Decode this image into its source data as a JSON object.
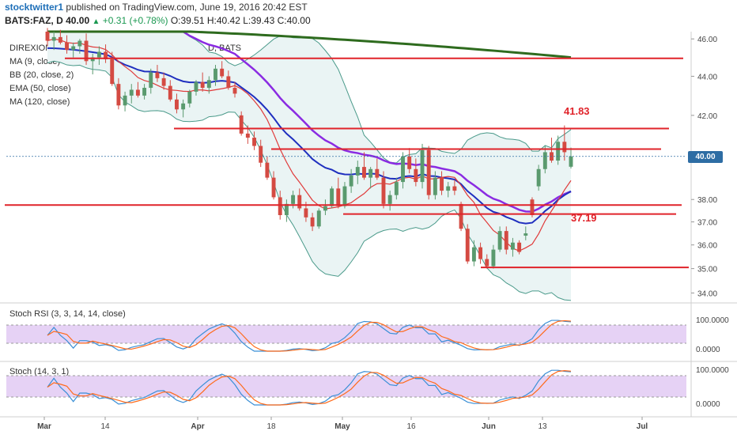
{
  "header": {
    "publisher": "stocktwitter1",
    "published_text": "published on TradingView.com, June 19, 2016 20:42 EST",
    "symbol": "BATS:FAZ, D",
    "last": "40.00",
    "change": "+0.31 (+0.78%)",
    "ohlc": "O:39.51 H:40.42 L:39.43 C:40.00"
  },
  "legend": {
    "title": "DIREXION DAILY FINANCIAL BEAR 3X SHARES, D, BATS",
    "ma9": "MA (9, close)",
    "bb": "BB (20, close, 2)",
    "ema50": "EMA (50, close)",
    "ma120": "MA (120, close)"
  },
  "panes": {
    "stoch_rsi": "Stoch RSI (3, 3, 14, 14, close)",
    "stoch": "Stoch (14, 3, 1)"
  },
  "colors": {
    "up": "#5a9a6e",
    "down": "#d44a42",
    "bb": "#4a9a8a",
    "bbfill": "#eaf4f4",
    "ma9": "#e03a3a",
    "ema50": "#1f2fbf",
    "ma120": "#8a2be2",
    "ma_long": "#2e6b1e",
    "level": "#e0232a",
    "k": "#3a8fd6",
    "d": "#ff6a1a",
    "band": "#e6d2f5",
    "tag": "#2e6da4"
  },
  "chart_data": {
    "type": "candlestick",
    "y_axis": {
      "min": 33.6,
      "max": 46.4,
      "ticks": [
        "46.00",
        "44.00",
        "42.00",
        "40.00",
        "38.00",
        "37.00",
        "36.00",
        "35.00",
        "34.00"
      ],
      "scale": "log"
    },
    "x_axis_labels": [
      "Mar",
      "14",
      "Apr",
      "18",
      "May",
      "16",
      "Jun",
      "13",
      "Jul"
    ],
    "last_price": "40.00",
    "annotations": [
      {
        "text": "41.83",
        "y": 41.83
      },
      {
        "text": "37.19",
        "y": 37.19
      }
    ],
    "horizontal_levels": [
      44.95,
      41.35,
      40.35,
      37.75,
      37.35,
      35.05
    ],
    "candles": [
      [
        46.4,
        46.6,
        45.6,
        45.9
      ],
      [
        45.9,
        46.4,
        45.4,
        46.1
      ],
      [
        46.1,
        46.5,
        45.7,
        45.8
      ],
      [
        45.8,
        46.2,
        45.2,
        45.4
      ],
      [
        45.4,
        45.8,
        45.0,
        45.6
      ],
      [
        45.6,
        46.0,
        45.2,
        45.9
      ],
      [
        45.9,
        46.3,
        44.6,
        44.8
      ],
      [
        44.8,
        45.2,
        44.1,
        45.0
      ],
      [
        45.0,
        45.6,
        44.6,
        45.3
      ],
      [
        45.3,
        45.7,
        44.7,
        44.9
      ],
      [
        44.9,
        45.3,
        43.5,
        43.6
      ],
      [
        43.6,
        43.9,
        42.3,
        42.5
      ],
      [
        42.5,
        43.2,
        42.2,
        43.0
      ],
      [
        43.0,
        43.6,
        42.6,
        43.3
      ],
      [
        43.3,
        43.7,
        42.9,
        43.0
      ],
      [
        43.0,
        43.6,
        42.8,
        43.4
      ],
      [
        43.4,
        44.4,
        43.1,
        44.2
      ],
      [
        44.2,
        44.6,
        43.7,
        43.9
      ],
      [
        43.9,
        44.2,
        43.3,
        43.5
      ],
      [
        43.5,
        43.8,
        42.7,
        42.8
      ],
      [
        42.8,
        43.1,
        42.1,
        42.3
      ],
      [
        42.3,
        42.8,
        41.9,
        42.6
      ],
      [
        42.6,
        43.3,
        42.4,
        43.2
      ],
      [
        43.2,
        43.8,
        43.0,
        43.7
      ],
      [
        43.7,
        44.2,
        43.2,
        43.4
      ],
      [
        43.4,
        44.0,
        43.1,
        43.8
      ],
      [
        43.8,
        44.6,
        43.5,
        44.4
      ],
      [
        44.4,
        44.8,
        43.9,
        44.0
      ],
      [
        44.0,
        44.3,
        43.3,
        43.4
      ],
      [
        43.4,
        43.7,
        42.9,
        43.1
      ],
      [
        42.0,
        42.2,
        41.0,
        41.1
      ],
      [
        41.1,
        41.5,
        40.6,
        40.9
      ],
      [
        40.9,
        41.2,
        40.3,
        40.5
      ],
      [
        40.5,
        40.8,
        39.5,
        39.7
      ],
      [
        39.7,
        40.0,
        38.9,
        39.0
      ],
      [
        39.0,
        39.3,
        38.0,
        38.1
      ],
      [
        38.1,
        38.4,
        37.1,
        37.3
      ],
      [
        37.3,
        38.0,
        37.0,
        37.8
      ],
      [
        37.8,
        38.4,
        37.6,
        38.2
      ],
      [
        38.2,
        38.5,
        37.5,
        37.6
      ],
      [
        37.6,
        37.9,
        37.0,
        37.2
      ],
      [
        37.2,
        37.4,
        36.6,
        36.8
      ],
      [
        36.8,
        37.6,
        36.7,
        37.5
      ],
      [
        37.5,
        38.0,
        37.3,
        37.7
      ],
      [
        37.7,
        38.6,
        37.6,
        38.5
      ],
      [
        38.5,
        39.0,
        37.6,
        37.7
      ],
      [
        37.7,
        38.8,
        37.6,
        38.6
      ],
      [
        38.6,
        39.4,
        38.3,
        39.1
      ],
      [
        39.1,
        39.8,
        38.7,
        39.5
      ],
      [
        39.5,
        40.2,
        38.9,
        39.0
      ],
      [
        39.0,
        39.5,
        38.5,
        39.4
      ],
      [
        39.4,
        39.9,
        38.9,
        39.0
      ],
      [
        39.0,
        39.3,
        37.6,
        37.8
      ],
      [
        37.8,
        38.4,
        37.5,
        38.2
      ],
      [
        38.2,
        39.0,
        38.0,
        38.8
      ],
      [
        38.8,
        40.2,
        38.5,
        40.0
      ],
      [
        40.0,
        40.4,
        39.2,
        39.4
      ],
      [
        39.4,
        39.9,
        38.6,
        38.8
      ],
      [
        38.8,
        40.6,
        38.5,
        40.3
      ],
      [
        40.3,
        40.5,
        38.0,
        38.2
      ],
      [
        38.2,
        39.3,
        38.0,
        39.0
      ],
      [
        39.0,
        39.3,
        38.2,
        38.4
      ],
      [
        38.4,
        38.8,
        38.1,
        38.6
      ],
      [
        38.6,
        38.9,
        38.2,
        38.4
      ],
      [
        37.8,
        37.9,
        36.6,
        36.7
      ],
      [
        36.7,
        36.9,
        35.2,
        35.3
      ],
      [
        35.3,
        36.2,
        35.1,
        35.9
      ],
      [
        35.9,
        36.1,
        35.2,
        35.4
      ],
      [
        35.4,
        35.6,
        35.0,
        35.1
      ],
      [
        35.1,
        36.0,
        35.0,
        35.8
      ],
      [
        35.8,
        36.8,
        35.7,
        36.6
      ],
      [
        36.6,
        36.8,
        35.6,
        35.8
      ],
      [
        35.8,
        36.3,
        35.5,
        36.1
      ],
      [
        36.1,
        36.2,
        35.6,
        35.7
      ],
      [
        36.4,
        36.8,
        36.2,
        36.5
      ],
      [
        38.0,
        38.1,
        37.2,
        37.3
      ],
      [
        38.6,
        39.6,
        38.4,
        39.4
      ],
      [
        39.4,
        40.5,
        39.2,
        40.2
      ],
      [
        40.2,
        40.9,
        39.7,
        39.8
      ],
      [
        39.8,
        41.0,
        39.6,
        40.7
      ],
      [
        40.7,
        41.5,
        39.8,
        40.2
      ],
      [
        39.51,
        40.42,
        39.43,
        40.0
      ]
    ]
  }
}
